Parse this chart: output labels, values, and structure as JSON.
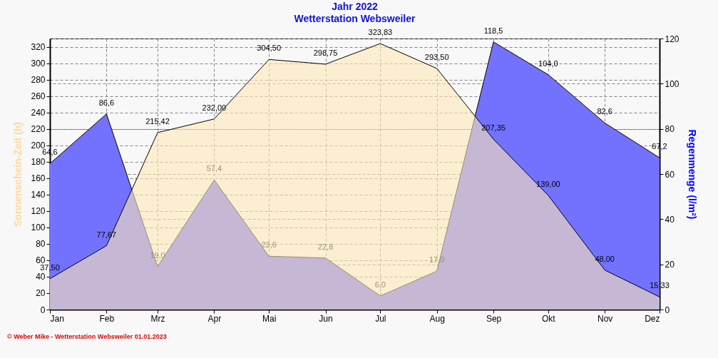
{
  "chart_data": {
    "type": "area",
    "title": "Jahr  2022",
    "subtitle": "Wetterstation Websweiler",
    "ylabel": "Sonnenschein-Zeit  (h)",
    "y2label": "Regenmenge  (l/m²)",
    "x": [
      "2022-01",
      "2022-02",
      "2022-03",
      "2022-04",
      "2022-05",
      "2022-06",
      "2022-07",
      "2022-08",
      "2022-09",
      "2022-10",
      "2022-11",
      "2022-12"
    ],
    "xlim": [
      "2022-01",
      "2022-12"
    ],
    "xticks": [
      {
        "value": "2022-01",
        "label": "Jan"
      },
      {
        "value": "2022-02",
        "label": "Feb"
      },
      {
        "value": "2022-03",
        "label": "Mrz"
      },
      {
        "value": "2022-04",
        "label": "Apr"
      },
      {
        "value": "2022-05",
        "label": "Mai"
      },
      {
        "value": "2022-06",
        "label": "Jun"
      },
      {
        "value": "2022-07",
        "label": "Jul"
      },
      {
        "value": "2022-08",
        "label": "Aug"
      },
      {
        "value": "2022-09",
        "label": "Sep"
      },
      {
        "value": "2022-10",
        "label": "Okt"
      },
      {
        "value": "2022-11",
        "label": "Nov"
      },
      {
        "value": "2022-12",
        "label": "Dez"
      }
    ],
    "ylim": [
      0,
      330
    ],
    "yticks": [
      0,
      20,
      40,
      60,
      80,
      100,
      120,
      140,
      160,
      180,
      200,
      220,
      240,
      260,
      280,
      300,
      320
    ],
    "y2lim": [
      0,
      120
    ],
    "y2ticks": [
      0,
      20,
      40,
      60,
      80,
      100,
      120
    ],
    "series": [
      {
        "axis": "y2",
        "color": "#7272ff",
        "values": [
          64.6,
          86.6,
          19.0,
          57.4,
          23.6,
          22.8,
          6.0,
          17.0,
          118.5,
          104.0,
          82.6,
          67.2
        ],
        "value_labels": [
          "64,6",
          "86,6",
          "19,0",
          "57,4",
          "23,6",
          "22,8",
          "6,0",
          "17,0",
          "118,5",
          "104,0",
          "82,6",
          "67,2"
        ]
      },
      {
        "color": "#ffe8b8",
        "values": [
          37.5,
          77.67,
          215.42,
          232.0,
          304.5,
          298.75,
          323.83,
          293.5,
          207.35,
          139.0,
          48.0,
          15.33
        ],
        "value_labels": [
          "37,50",
          "77,67",
          "215,42",
          "232,00",
          "304,50",
          "298,75",
          "323,83",
          "293,50",
          "207,35",
          "139,00",
          "48,00",
          "15,33"
        ]
      }
    ],
    "grid": true,
    "legend": false,
    "annotations": [
      "© Weber Mike  -  Wetterstation Websweiler  01.01.2023"
    ]
  }
}
